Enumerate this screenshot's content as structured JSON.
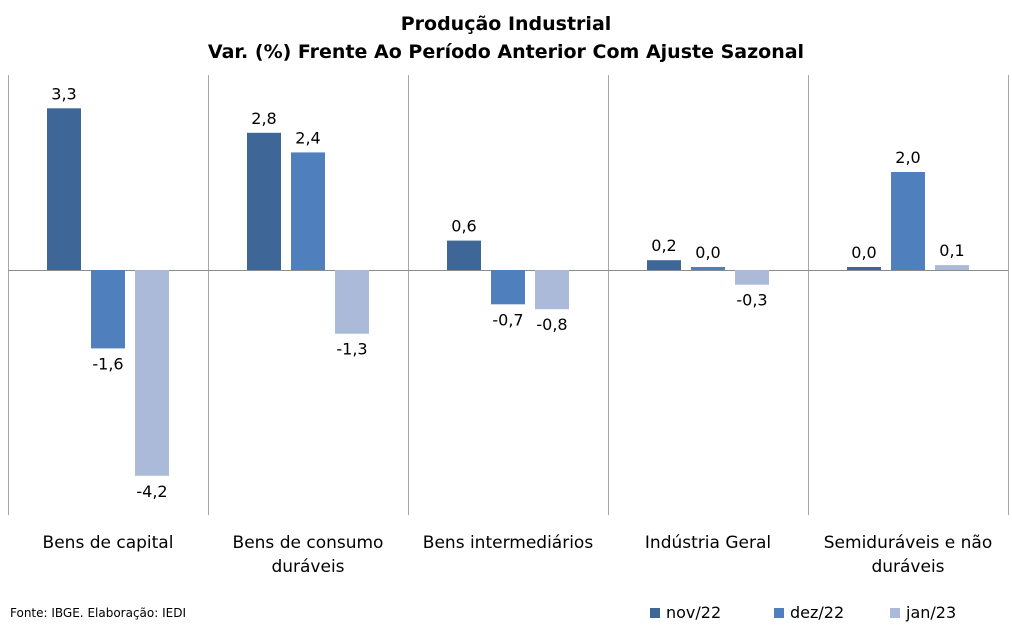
{
  "title_line1": "Produção Industrial",
  "title_line2": "Var. (%) Frente Ao Período Anterior Com Ajuste Sazonal",
  "source": "Fonte: IBGE. Elaboração: IEDI",
  "colors": {
    "nov22": "#3E6798",
    "dez22": "#4F80BD",
    "jan23": "#ABBAD8",
    "grid": "#a6a6a6"
  },
  "chart_data": {
    "type": "bar",
    "title": "Produção Industrial\nVar. (%) Frente Ao Período Anterior Com Ajuste Sazonal",
    "categories": [
      [
        "Bens de capital"
      ],
      [
        "Bens de consumo",
        "duráveis"
      ],
      [
        "Bens intermediários"
      ],
      [
        "Indústria Geral"
      ],
      [
        "Semiduráveis e não",
        "duráveis"
      ]
    ],
    "series": [
      {
        "name": "nov/22",
        "values": [
          3.3,
          2.8,
          0.6,
          0.2,
          0.0
        ],
        "labels": [
          "3,3",
          "2,8",
          "0,6",
          "0,2",
          "0,0"
        ]
      },
      {
        "name": "dez/22",
        "values": [
          -1.6,
          2.4,
          -0.7,
          0.0,
          2.0
        ],
        "labels": [
          "-1,6",
          "2,4",
          "-0,7",
          "0,0",
          "2,0"
        ]
      },
      {
        "name": "jan/23",
        "values": [
          -4.2,
          -1.3,
          -0.8,
          -0.3,
          0.1
        ],
        "labels": [
          "-4,2",
          "-1,3",
          "-0,8",
          "-0,3",
          "0,1"
        ]
      }
    ],
    "ylim": [
      -4.9,
      3.9
    ],
    "legend_position": "bottom-right",
    "grid": "vertical category separators"
  }
}
